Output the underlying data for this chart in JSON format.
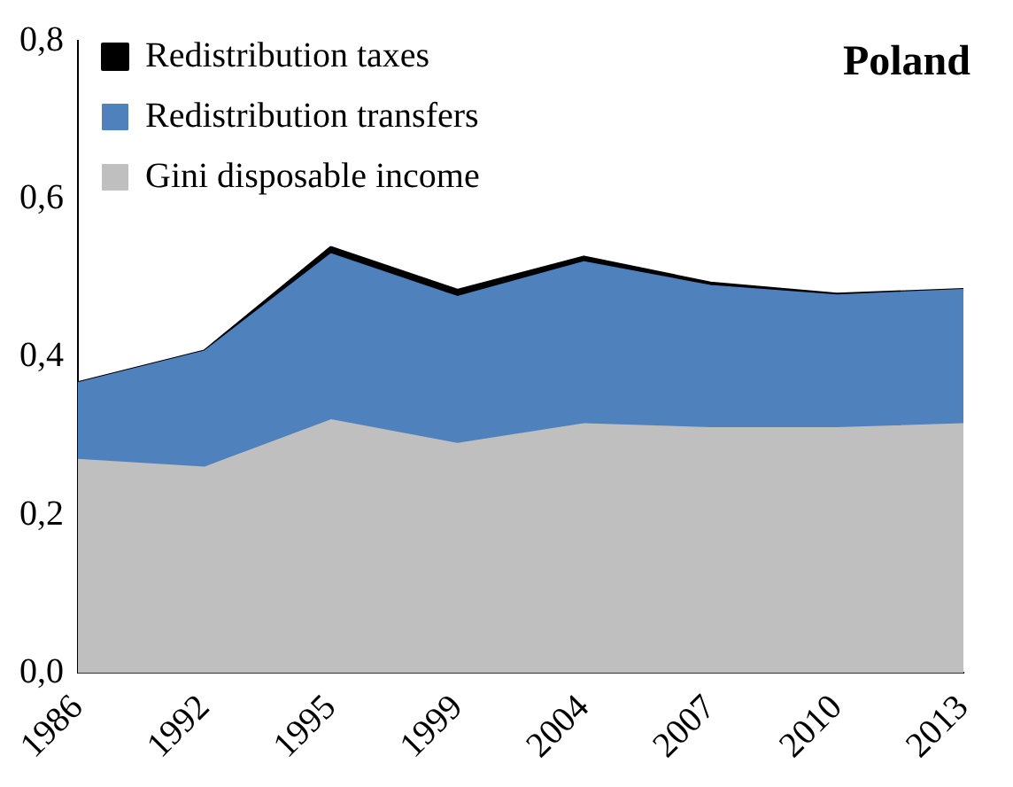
{
  "chart_data": {
    "type": "area",
    "title": "Poland",
    "stacked": true,
    "categories": [
      "1986",
      "1992",
      "1995",
      "1999",
      "2004",
      "2007",
      "2010",
      "2013"
    ],
    "series": [
      {
        "name": "Gini disposable income",
        "color": "#bfbfbf",
        "values": [
          0.27,
          0.26,
          0.32,
          0.29,
          0.315,
          0.31,
          0.31,
          0.315
        ]
      },
      {
        "name": "Redistribution transfers",
        "color": "#4f81bd",
        "values": [
          0.097,
          0.147,
          0.21,
          0.186,
          0.205,
          0.18,
          0.168,
          0.17
        ]
      },
      {
        "name": "Redistribution taxes",
        "color": "#000000",
        "values": [
          0,
          0,
          0.008,
          0.008,
          0.006,
          0.003,
          0.001,
          0
        ]
      }
    ],
    "ylim": [
      0,
      0.8
    ],
    "yticks": [
      {
        "value": 0,
        "label": "0,0"
      },
      {
        "value": 0.2,
        "label": "0,2"
      },
      {
        "value": 0.4,
        "label": "0,4"
      },
      {
        "value": 0.6,
        "label": "0,6"
      },
      {
        "value": 0.8,
        "label": "0,8"
      }
    ],
    "grid": false,
    "legend": "top left"
  }
}
